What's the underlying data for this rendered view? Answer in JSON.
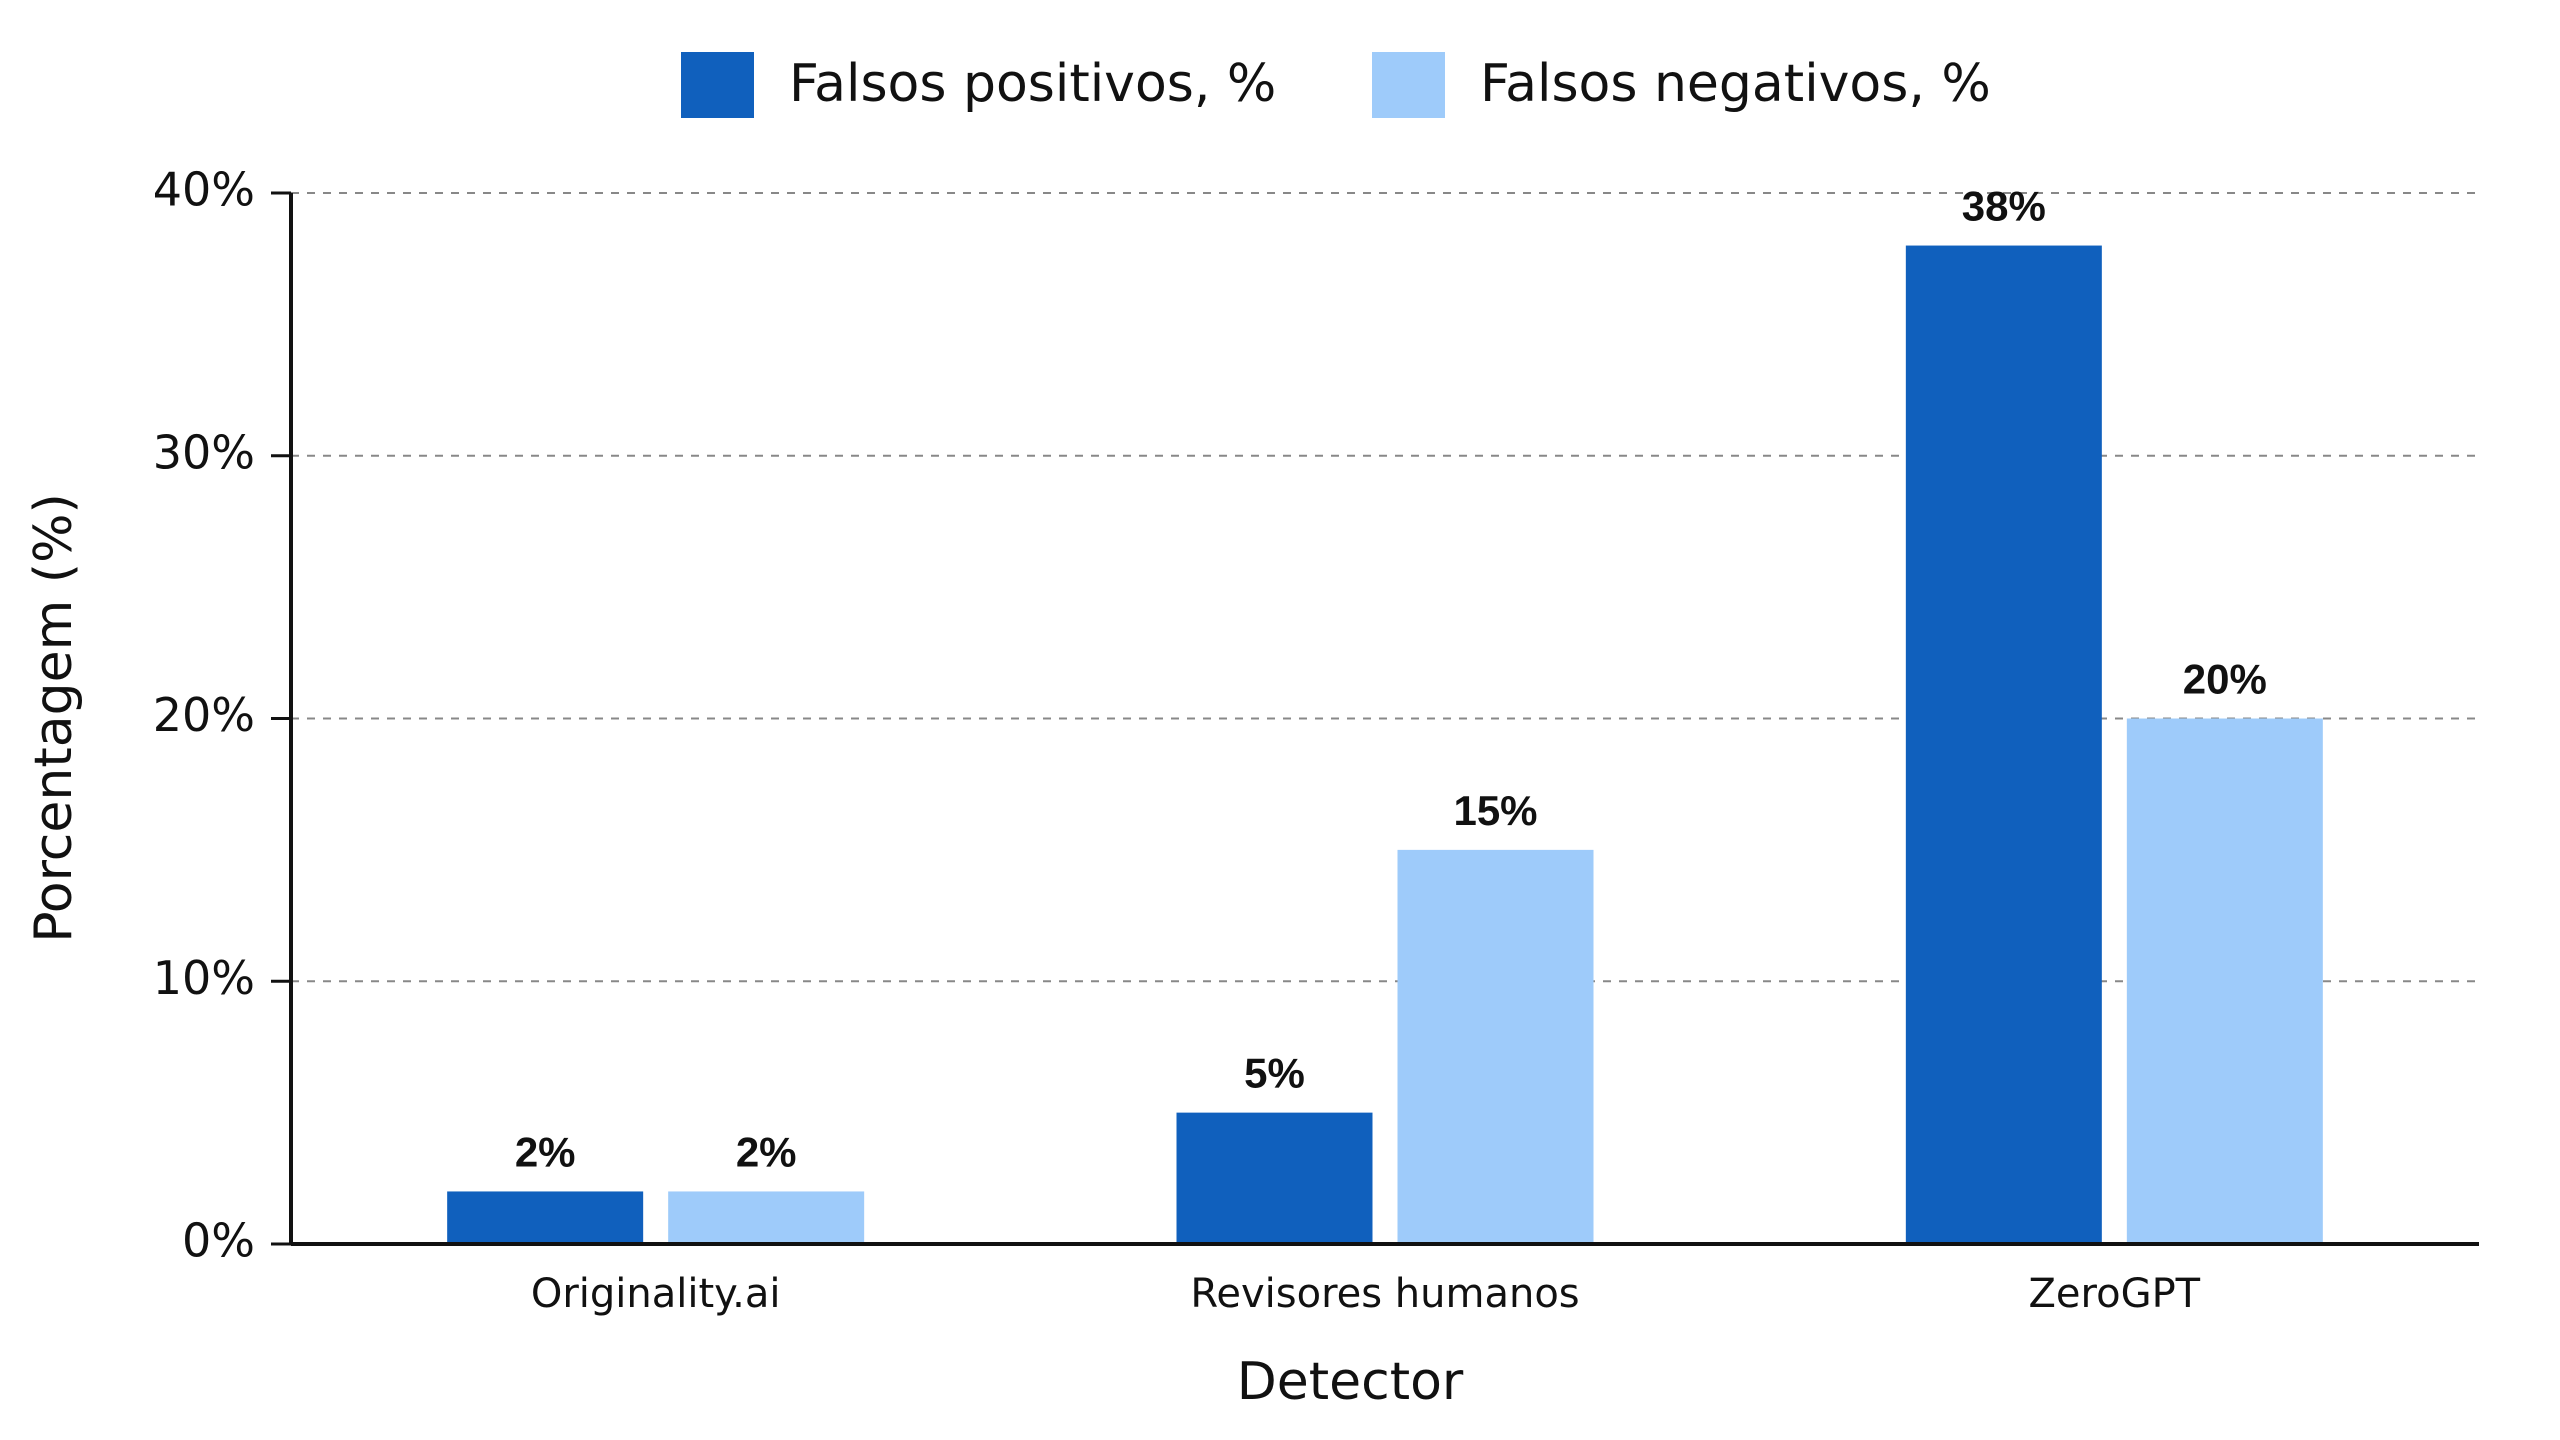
{
  "chart_data": {
    "type": "bar",
    "x_label": "Detector",
    "y_label": "Porcentagem (%)",
    "categories": [
      "Originality.ai",
      "Revisores humanos",
      "ZeroGPT"
    ],
    "series": [
      {
        "name": "Falsos positivos, %",
        "color": "#1060bd",
        "values": [
          2,
          5,
          38
        ],
        "value_labels": [
          "2%",
          "5%",
          "38%"
        ]
      },
      {
        "name": "Falsos negativos, %",
        "color": "#9ecbfa",
        "values": [
          2,
          15,
          20
        ],
        "value_labels": [
          "2%",
          "15%",
          "20%"
        ]
      }
    ],
    "ylim": [
      0,
      40
    ],
    "yticks": [
      {
        "value": 0,
        "label": "0%"
      },
      {
        "value": 10,
        "label": "10%"
      },
      {
        "value": 20,
        "label": "20%"
      },
      {
        "value": 30,
        "label": "30%"
      },
      {
        "value": 40,
        "label": "40%"
      }
    ],
    "grid": true,
    "legend": "top"
  }
}
